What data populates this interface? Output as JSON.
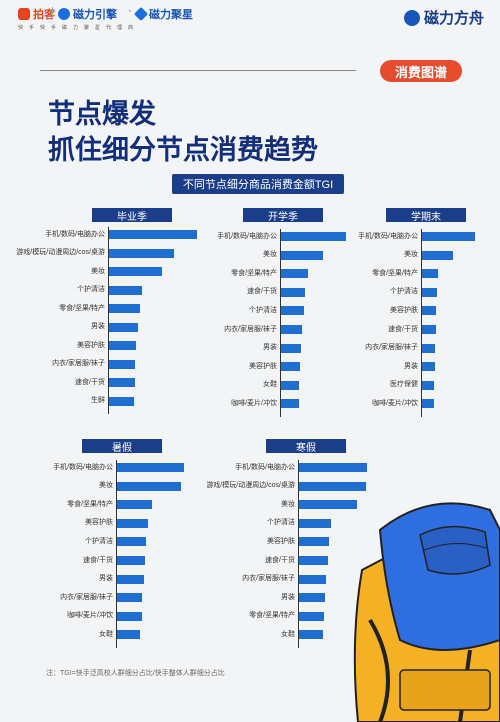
{
  "header": {
    "brand_kuaishou": "快手",
    "brand_kuaishou_sub": "拍客",
    "brand_yinqing": "磁力引擎",
    "brand_dot": "·",
    "brand_juxing": "磁力聚星",
    "slogan": "快手磁力聚星代理商",
    "brand_right": "磁力方舟"
  },
  "tag": "消费图谱",
  "title_line1": "节点爆发",
  "title_line2": "抓住细分节点消费趋势",
  "note": "注：TGI=快手泛高校人群细分占比/快手整体人群细分占比",
  "icons": [
    "kuaishou-logo-icon",
    "yinqing-logo-icon",
    "juxing-logo-icon",
    "cili-fangzhou-logo-icon",
    "backpack-illustration-icon"
  ],
  "colors": {
    "navy": "#1a3e8a",
    "bar": "#1f6fd0",
    "accent": "#e84c2e"
  },
  "chart_data": [
    {
      "type": "bar",
      "orientation": "horizontal",
      "title": "不同节点细分商品消费金额TGI",
      "panel": "毕业季",
      "categories": [
        "手机/数码/电脑办公",
        "游戏/模玩/动漫周边/cos/桌游",
        "美妆",
        "个护清洁",
        "零食/坚果/特产",
        "男装",
        "美容护肤",
        "内衣/家居服/袜子",
        "速食/干货",
        "生鲜"
      ],
      "values": [
        100,
        74,
        60,
        37,
        35,
        33,
        31,
        30,
        29,
        28
      ]
    },
    {
      "type": "bar",
      "orientation": "horizontal",
      "panel": "开学季",
      "categories": [
        "手机/数码/电脑办公",
        "美妆",
        "零食/坚果/特产",
        "速食/干货",
        "个护清洁",
        "内衣/家居服/袜子",
        "男装",
        "美容护肤",
        "女鞋",
        "咖啡/麦片/冲饮"
      ],
      "values": [
        100,
        65,
        42,
        37,
        35,
        33,
        31,
        29,
        28,
        27
      ]
    },
    {
      "type": "bar",
      "orientation": "horizontal",
      "panel": "学期末",
      "categories": [
        "手机/数码/电脑办公",
        "美妆",
        "零食/坚果/特产",
        "个护清洁",
        "美容护肤",
        "速食/干货",
        "内衣/家居服/袜子",
        "男装",
        "医疗保健",
        "咖啡/麦片/冲饮"
      ],
      "values": [
        100,
        58,
        30,
        28,
        27,
        26,
        25,
        24,
        23,
        22
      ]
    },
    {
      "type": "bar",
      "orientation": "horizontal",
      "panel": "暑假",
      "categories": [
        "手机/数码/电脑办公",
        "美妆",
        "零食/坚果/特产",
        "美容护肤",
        "个护清洁",
        "速食/干货",
        "男装",
        "内衣/家居服/袜子",
        "咖啡/麦片/冲饮",
        "女鞋"
      ],
      "values": [
        100,
        96,
        52,
        46,
        43,
        42,
        40,
        38,
        37,
        34
      ]
    },
    {
      "type": "bar",
      "orientation": "horizontal",
      "panel": "寒假",
      "categories": [
        "手机/数码/电脑办公",
        "游戏/模玩/动漫周边/cos/桌游",
        "美妆",
        "个护清洁",
        "美容护肤",
        "速食/干货",
        "内衣/家居服/袜子",
        "男装",
        "零食/坚果/特产",
        "女鞋"
      ],
      "values": [
        100,
        98,
        86,
        47,
        44,
        42,
        40,
        38,
        37,
        36
      ]
    }
  ]
}
